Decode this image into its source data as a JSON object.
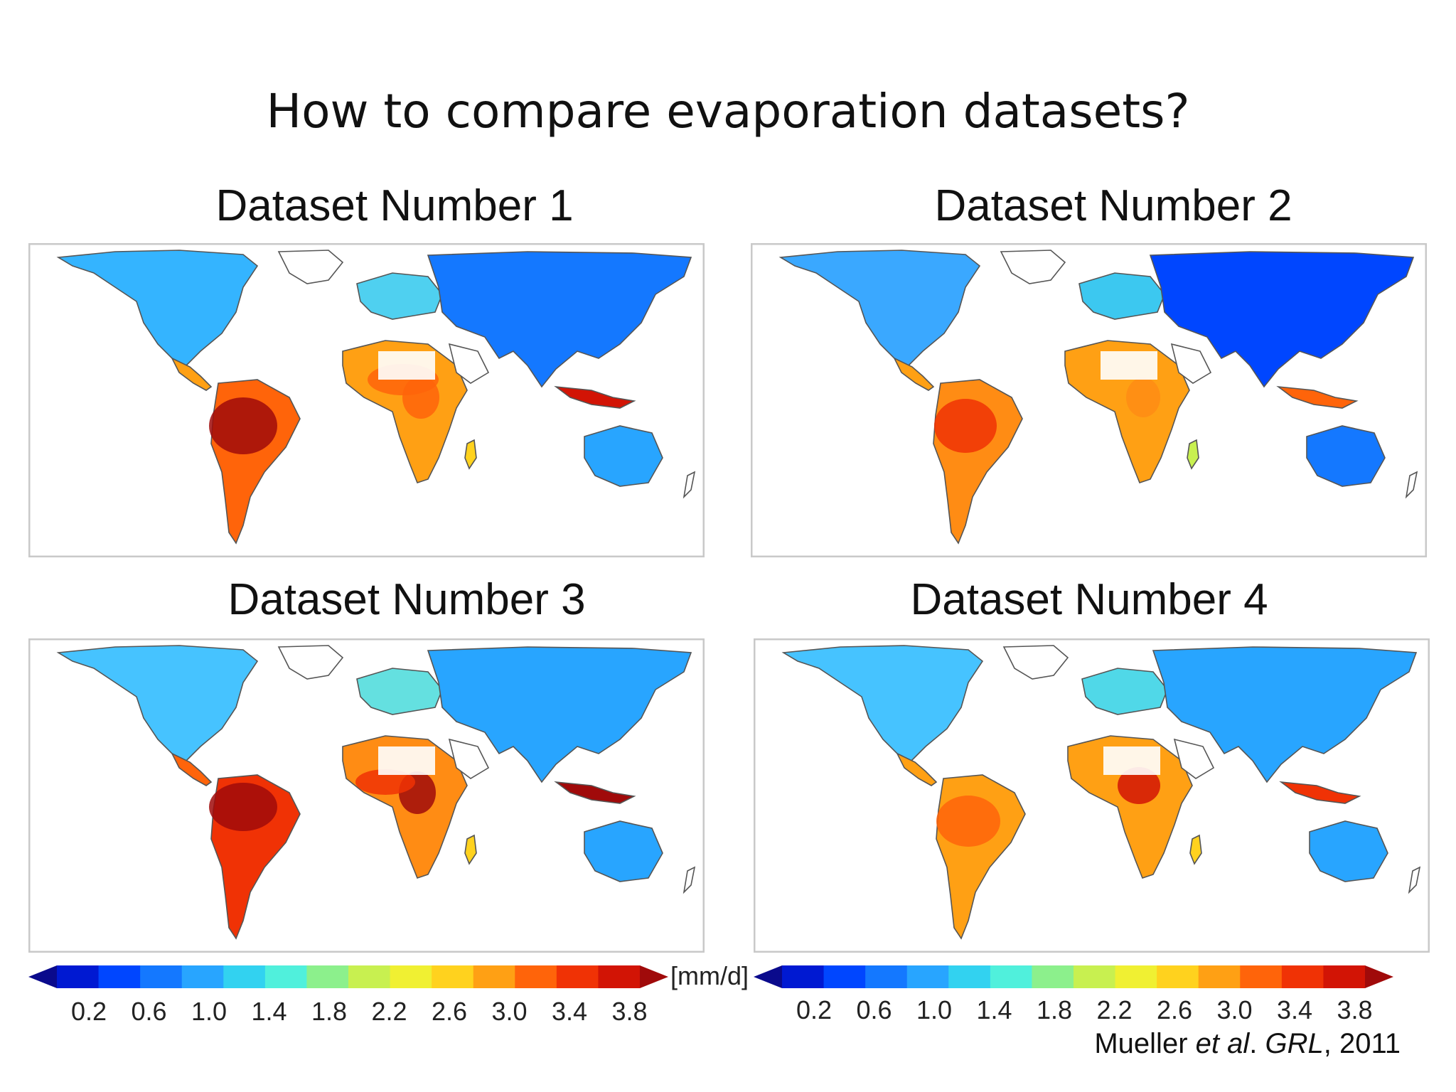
{
  "slide": {
    "title": "How to compare evaporation datasets?"
  },
  "panels": [
    {
      "title": "Dataset Number 1",
      "variant": 1
    },
    {
      "title": "Dataset Number 2",
      "variant": 2
    },
    {
      "title": "Dataset Number 3",
      "variant": 3
    },
    {
      "title": "Dataset Number 4",
      "variant": 4
    }
  ],
  "legend": {
    "unit": "[mm/d]",
    "ticks": [
      "0.2",
      "0.6",
      "1.0",
      "1.4",
      "1.8",
      "2.2",
      "2.6",
      "3.0",
      "3.4",
      "3.8"
    ],
    "colors": [
      "#0a0a8c",
      "#0019d2",
      "#0046ff",
      "#1478ff",
      "#28a5ff",
      "#32d2f0",
      "#50f0dc",
      "#8cf08c",
      "#c8f050",
      "#f0f032",
      "#ffd21e",
      "#ffa014",
      "#ff640a",
      "#f03205",
      "#d21405",
      "#a00a0a"
    ]
  },
  "citation": {
    "author": "Mueller",
    "etal": "et al",
    "period": ".",
    "journal": "GRL",
    "year": ", 2011"
  },
  "palette": {
    "frame": "#c9c9c9",
    "coast": "#555555"
  }
}
